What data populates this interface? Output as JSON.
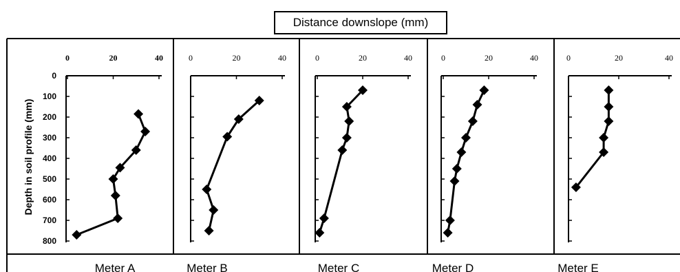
{
  "title": "Distance downslope (mm)",
  "ylabel": "Depth in soil profile (mm)",
  "chart_data": {
    "type": "line",
    "title": "Distance downslope (mm)",
    "xlabel": "Distance downslope (mm)",
    "ylabel": "Depth in soil profile (mm)",
    "xlim": [
      0,
      40
    ],
    "ylim": [
      0,
      800
    ],
    "x_ticks": [
      "0",
      "20",
      "40"
    ],
    "y_ticks": [
      "0",
      "100",
      "200",
      "300",
      "400",
      "500",
      "600",
      "700",
      "800"
    ],
    "series": [
      {
        "name": "Meter A",
        "x": [
          31,
          34,
          30,
          23,
          20,
          21,
          22,
          4
        ],
        "y": [
          185,
          270,
          360,
          445,
          500,
          580,
          690,
          770
        ]
      },
      {
        "name": "Meter B",
        "x": [
          30,
          21,
          16,
          7,
          10,
          8
        ],
        "y": [
          120,
          210,
          295,
          550,
          650,
          750
        ]
      },
      {
        "name": "Meter C",
        "x": [
          20,
          13,
          14,
          13,
          11,
          3,
          1
        ],
        "y": [
          70,
          150,
          220,
          300,
          360,
          690,
          760
        ]
      },
      {
        "name": "Meter D",
        "x": [
          18,
          15,
          13,
          10,
          8,
          6,
          5,
          3,
          2
        ],
        "y": [
          70,
          140,
          220,
          300,
          370,
          450,
          510,
          700,
          760
        ]
      },
      {
        "name": "Meter E",
        "x": [
          16,
          16,
          16,
          14,
          14,
          3
        ],
        "y": [
          70,
          150,
          220,
          300,
          370,
          540
        ]
      }
    ]
  }
}
